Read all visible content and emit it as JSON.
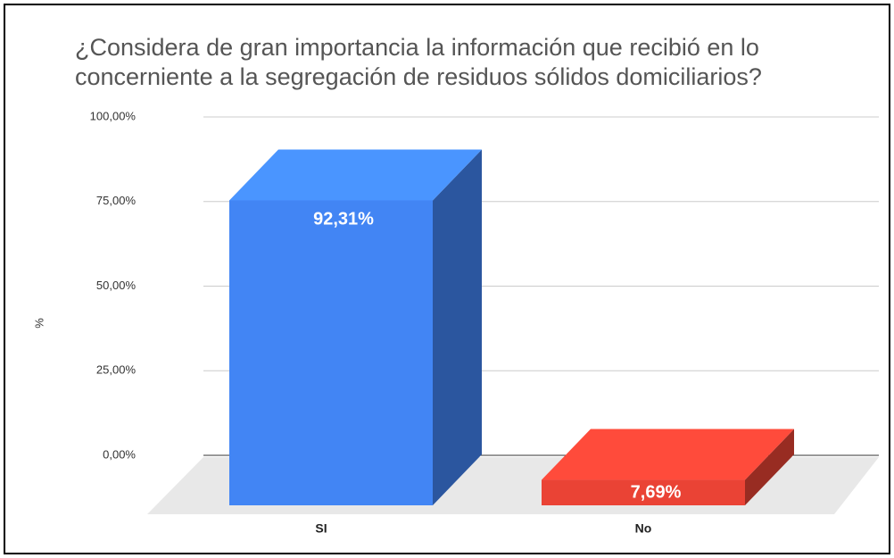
{
  "chart_data": {
    "type": "bar3d",
    "title": [
      "¿Considera de gran importancia la información que recibió en lo",
      "concerniente a la segregación de residuos sólidos domiciliarios?"
    ],
    "y_label": "%",
    "categories": [
      "SI",
      "No"
    ],
    "series": [
      {
        "name": "%",
        "values": [
          92.31,
          7.69
        ],
        "value_labels": [
          "92,31%",
          "7,69%"
        ],
        "colors": [
          "#4285f4",
          "#ea4335"
        ]
      }
    ],
    "ylim": [
      0,
      100
    ],
    "yticks": [
      {
        "value": 0,
        "label": "0,00%"
      },
      {
        "value": 25,
        "label": "25,00%"
      },
      {
        "value": 50,
        "label": "50,00%"
      },
      {
        "value": 75,
        "label": "75,00%"
      },
      {
        "value": 100,
        "label": "100,00%"
      }
    ],
    "grid": true
  }
}
